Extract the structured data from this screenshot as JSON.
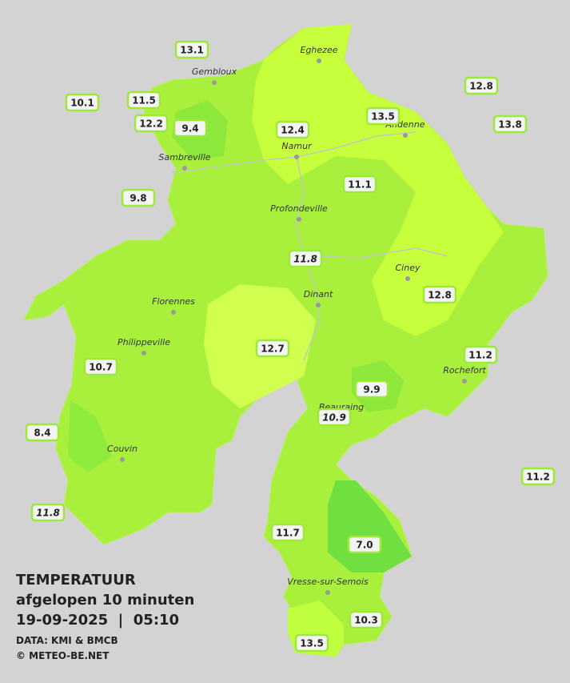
{
  "header": {
    "title": "TEMPERATUUR",
    "subtitle": "afgelopen 10 minuten",
    "datetime": "19-09-2025  |  05:10",
    "source": "DATA: KMI & BMCB",
    "copyright": "© METEO-BE.NET"
  },
  "cities": [
    {
      "label": "Eghezee"
    },
    {
      "label": "Gembloux"
    },
    {
      "label": "Andenne"
    },
    {
      "label": "Namur"
    },
    {
      "label": "Sambreville"
    },
    {
      "label": "Profondeville"
    },
    {
      "label": "Ciney"
    },
    {
      "label": "Dinant"
    },
    {
      "label": "Florennes"
    },
    {
      "label": "Philippeville"
    },
    {
      "label": "Rochefort"
    },
    {
      "label": "Beauraing"
    },
    {
      "label": "Couvin"
    },
    {
      "label": "Vresse-sur-Semois"
    }
  ],
  "stations": [
    {
      "label": "13.1"
    },
    {
      "label": "10.1"
    },
    {
      "label": "11.5"
    },
    {
      "label": "12.8"
    },
    {
      "label": "12.2"
    },
    {
      "label": "9.4"
    },
    {
      "label": "12.4"
    },
    {
      "label": "13.5"
    },
    {
      "label": "13.8"
    },
    {
      "label": "9.8"
    },
    {
      "label": "11.1"
    },
    {
      "label": "11.8"
    },
    {
      "label": "12.8"
    },
    {
      "label": "12.7"
    },
    {
      "label": "11.2"
    },
    {
      "label": "10.7"
    },
    {
      "label": "9.9"
    },
    {
      "label": "10.9"
    },
    {
      "label": "8.4"
    },
    {
      "label": "11.2"
    },
    {
      "label": "11.8"
    },
    {
      "label": "11.7"
    },
    {
      "label": "7.0"
    },
    {
      "label": "10.3"
    },
    {
      "label": "13.5"
    }
  ]
}
